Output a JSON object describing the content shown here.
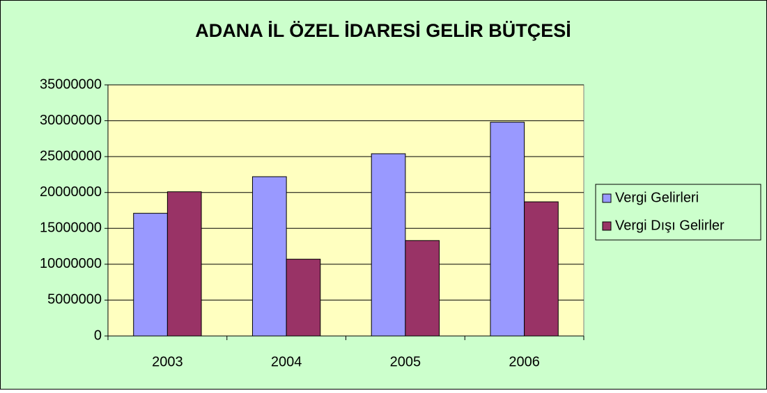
{
  "chart_data": {
    "type": "bar",
    "title": "ADANA İL ÖZEL İDARESİ GELİR BÜTÇESİ",
    "categories": [
      "2003",
      "2004",
      "2005",
      "2006"
    ],
    "series": [
      {
        "name": "Vergi Gelirleri",
        "color": "#9999ff",
        "values": [
          17100000,
          22200000,
          25400000,
          29800000
        ]
      },
      {
        "name": "Vergi Dışı Gelirler",
        "color": "#993366",
        "values": [
          20100000,
          10700000,
          13300000,
          18700000
        ]
      }
    ],
    "ylim": [
      0,
      35000000
    ],
    "yticks": [
      0,
      5000000,
      10000000,
      15000000,
      20000000,
      25000000,
      30000000,
      35000000
    ],
    "grid": true,
    "legend": "right"
  }
}
